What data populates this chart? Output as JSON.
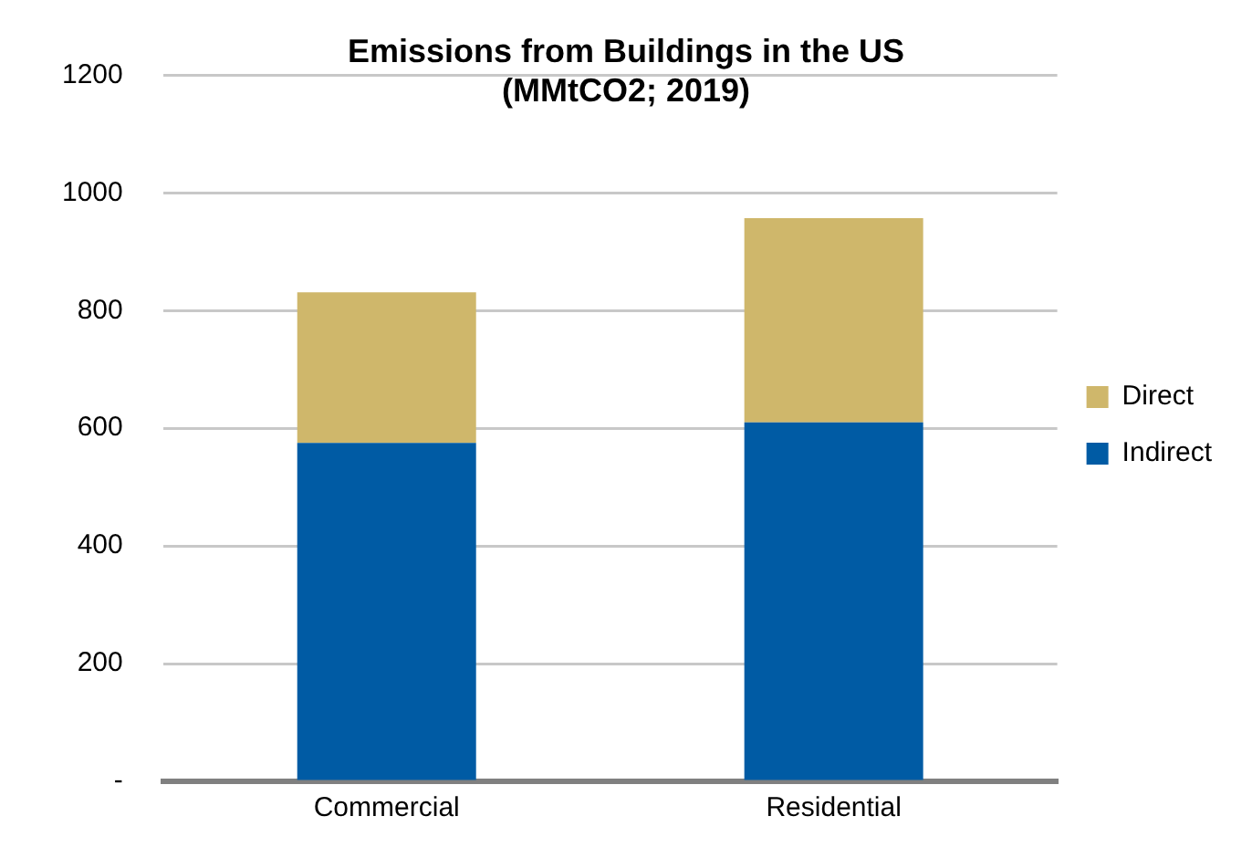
{
  "chart_data": {
    "type": "bar",
    "title": [
      "Emissions from Buildings in the US",
      "(MMtCO2; 2019)"
    ],
    "categories": [
      "Commercial",
      "Residential"
    ],
    "stacked": true,
    "series": [
      {
        "name": "Indirect",
        "color": "#005ba4",
        "values": [
          575,
          610
        ]
      },
      {
        "name": "Direct",
        "color": "#cfb76b",
        "values": [
          256,
          347
        ]
      }
    ],
    "ylim": [
      0,
      1200
    ],
    "yticks": [
      {
        "value": 0,
        "label": "-"
      },
      200,
      400,
      600,
      800,
      1000,
      1200
    ],
    "grid": "y",
    "legend": "right"
  }
}
